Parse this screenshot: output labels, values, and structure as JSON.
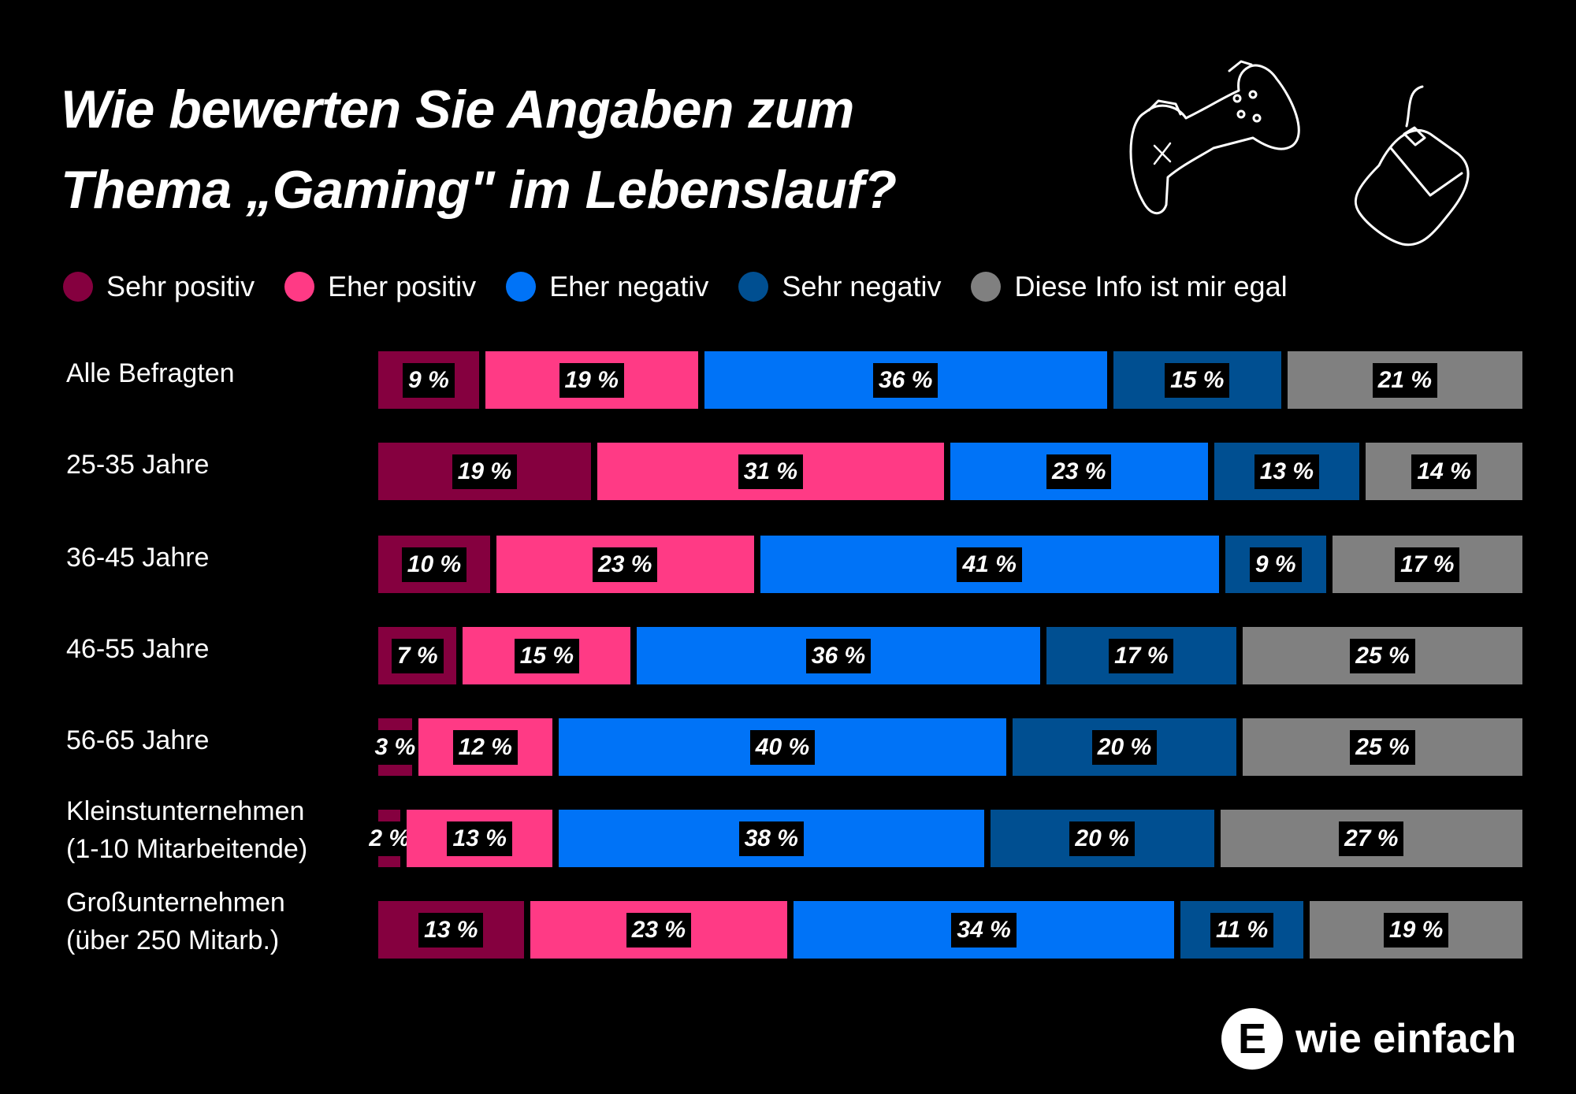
{
  "chart_data": {
    "type": "bar",
    "orientation": "horizontal",
    "stacked": true,
    "title": "Wie bewerten Sie Angaben zum Thema „Gaming\" im Lebenslauf?",
    "title_lines": [
      "Wie bewerten Sie Angaben zum",
      "Thema „Gaming\" im Lebenslauf?"
    ],
    "legend_position": "top",
    "grid": false,
    "categories": [
      "Alle Befragten",
      "25-35 Jahre",
      "36-45 Jahre",
      "46-55 Jahre",
      "56-65 Jahre",
      "Kleinstunternehmen (1-10 Mitarbeitende)",
      "Großunternehmen (über 250 Mitarb.)"
    ],
    "category_lines": [
      [
        "Alle Befragten"
      ],
      [
        "25-35 Jahre"
      ],
      [
        "36-45 Jahre"
      ],
      [
        "46-55 Jahre"
      ],
      [
        "56-65 Jahre"
      ],
      [
        "Kleinstunternehmen",
        "(1-10 Mitarbeitende)"
      ],
      [
        "Großunternehmen",
        "(über 250 Mitarb.)"
      ]
    ],
    "unit": "%",
    "series": [
      {
        "name": "Sehr positiv",
        "color": "#85003f",
        "values": [
          9,
          19,
          10,
          7,
          3,
          2,
          13
        ]
      },
      {
        "name": "Eher positiv",
        "color": "#ff3a85",
        "values": [
          19,
          31,
          23,
          15,
          12,
          13,
          23
        ]
      },
      {
        "name": "Eher negativ",
        "color": "#0073f7",
        "values": [
          36,
          23,
          41,
          36,
          40,
          38,
          34
        ]
      },
      {
        "name": "Sehr negativ",
        "color": "#004f91",
        "values": [
          15,
          13,
          9,
          17,
          20,
          20,
          11
        ]
      },
      {
        "name": "Diese Info ist mir egal",
        "color": "#808080",
        "values": [
          21,
          14,
          17,
          25,
          25,
          27,
          19
        ]
      }
    ]
  },
  "icons": [
    "gamepad-icon",
    "computer-mouse-icon"
  ],
  "logo": {
    "letter": "E",
    "text": "wie einfach"
  }
}
